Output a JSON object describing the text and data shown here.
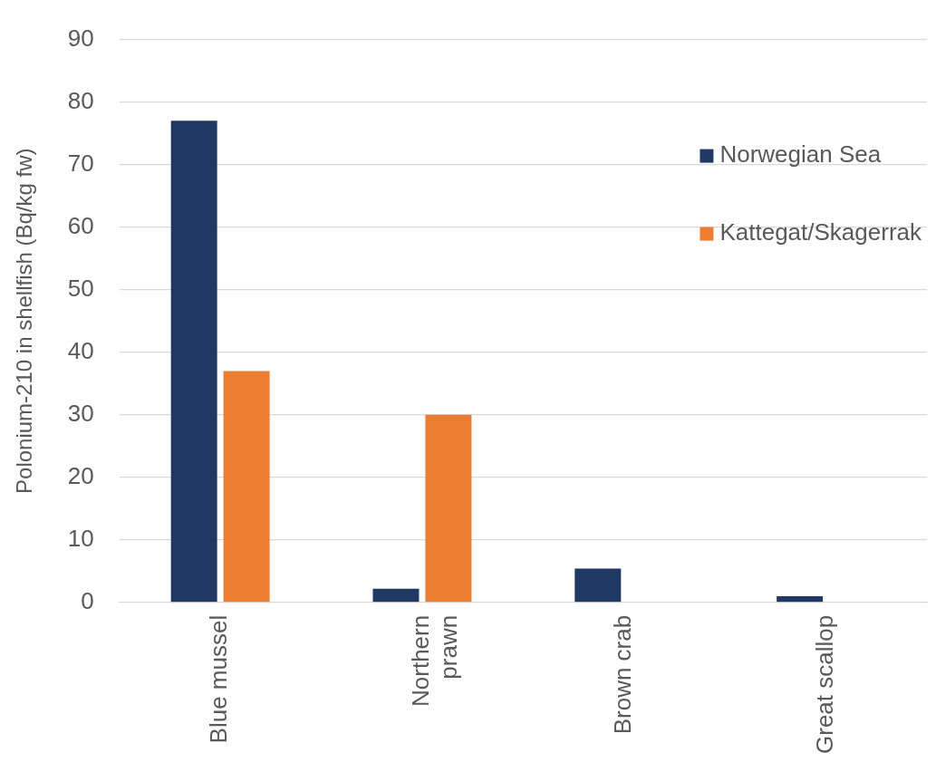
{
  "chart_data": {
    "type": "bar",
    "ylabel": "Polonium-210 in shellfish (Bq/kg fw)",
    "categories": [
      "Blue mussel",
      "Northern\nprawn",
      "Brown crab",
      "Great scallop"
    ],
    "series": [
      {
        "name": "Norwegian Sea",
        "color": "#203864",
        "values": [
          77,
          2.2,
          5.4,
          1.0
        ]
      },
      {
        "name": "Kattegat/Skagerrak",
        "color": "#ed7d31",
        "values": [
          37,
          30,
          null,
          null
        ]
      }
    ],
    "ylim": [
      0,
      90
    ],
    "yticks": [
      0,
      10,
      20,
      30,
      40,
      50,
      60,
      70,
      80,
      90
    ],
    "grid": "y",
    "legend": "top right"
  }
}
